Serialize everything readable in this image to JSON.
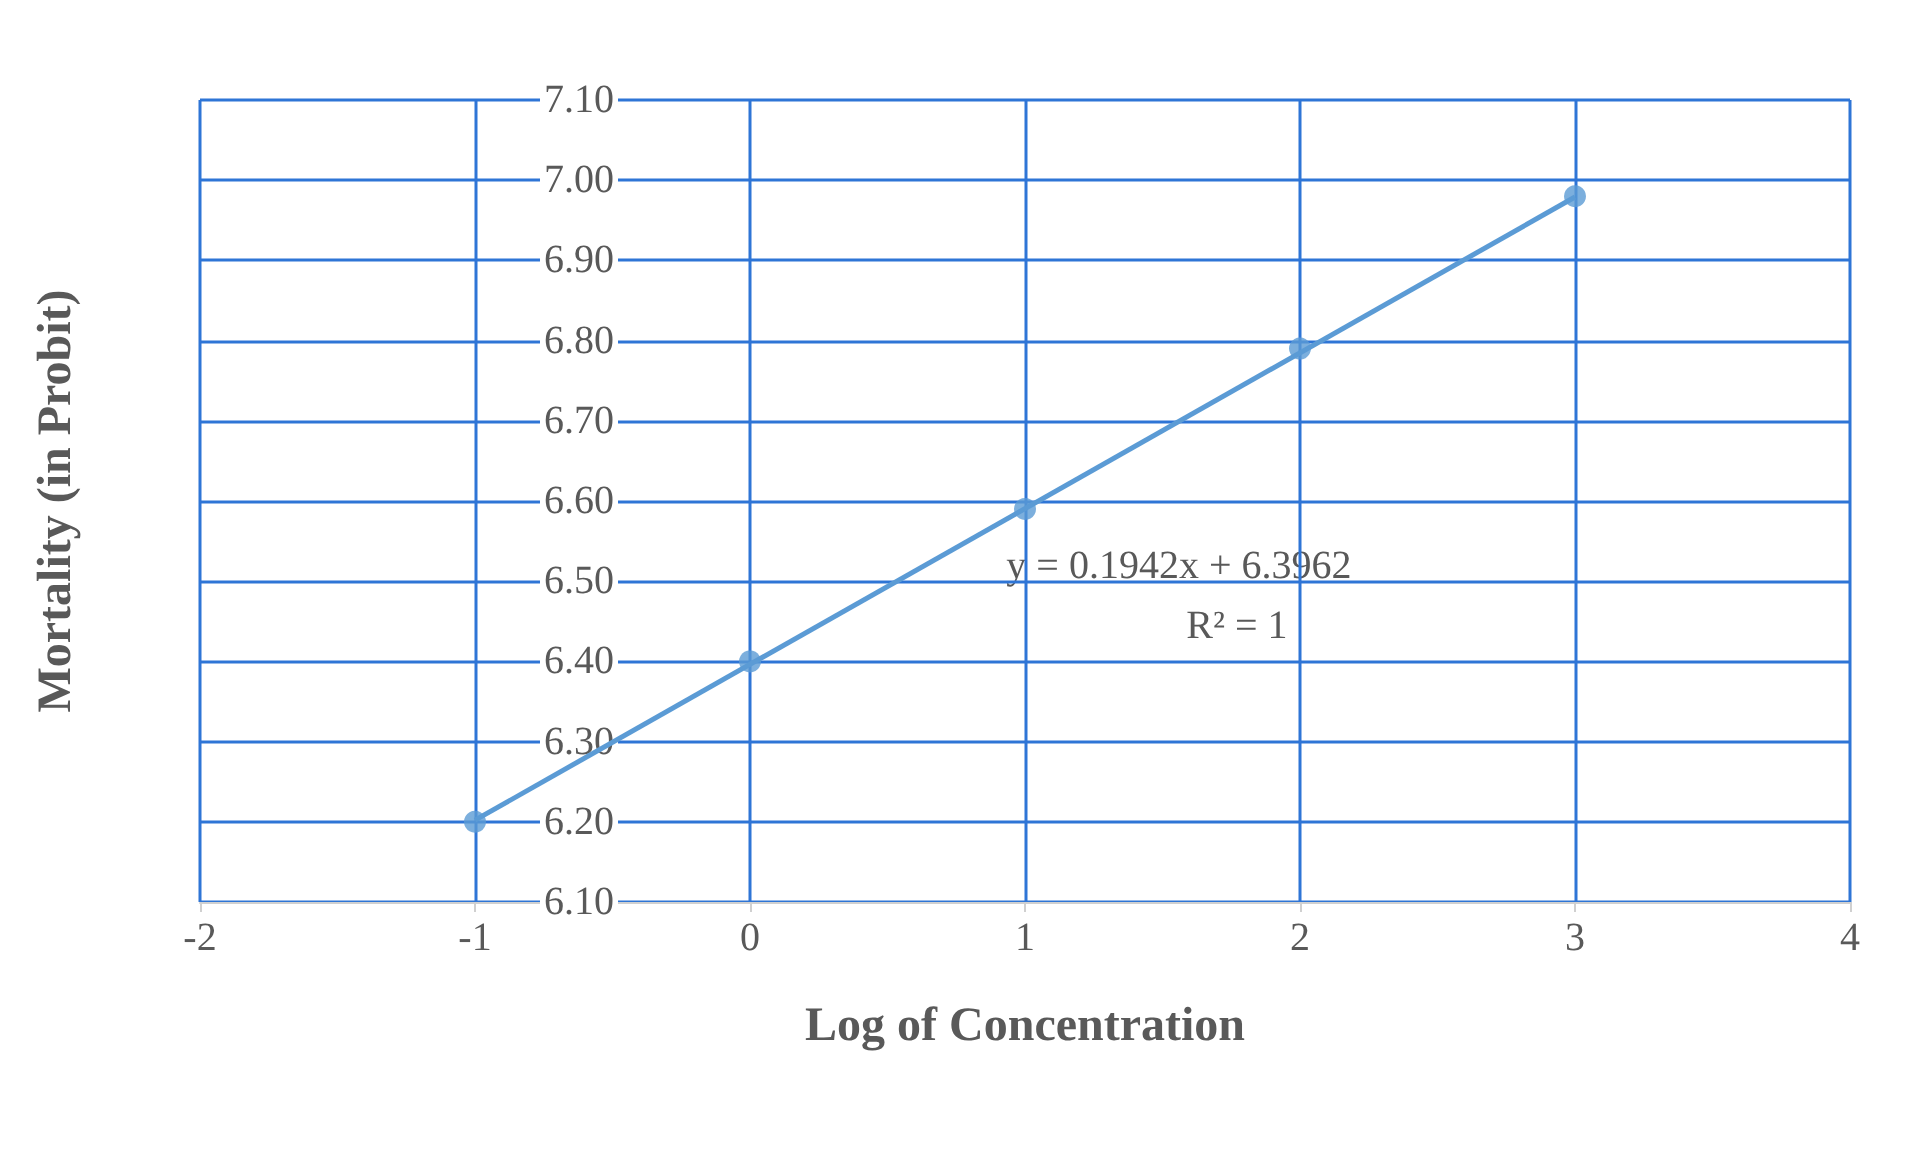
{
  "chart_data": {
    "type": "scatter",
    "xlabel": "Log of Concentration",
    "ylabel": "Mortality (in Probit)",
    "series": [
      {
        "color": "#5b9bd5",
        "x": [
          -1,
          0,
          1,
          2,
          3
        ],
        "values": [
          6.2,
          6.4,
          6.59,
          6.79,
          6.98
        ],
        "marker": "circle"
      },
      {
        "type": "line",
        "color": "#5b9bd5",
        "x": [
          -1,
          3
        ],
        "values": [
          6.202,
          6.979
        ],
        "marker": "none",
        "line_style": "solid"
      }
    ],
    "xlim": [
      -2,
      4
    ],
    "xticks": [
      -2,
      -1,
      0,
      1,
      2,
      3,
      4
    ],
    "ylim": [
      6.1,
      7.1
    ],
    "yticks": [
      {
        "value": 6.1,
        "label": "6.10"
      },
      {
        "value": 6.2,
        "label": "6.20"
      },
      {
        "value": 6.3,
        "label": "6.30"
      },
      {
        "value": 6.4,
        "label": "6.40"
      },
      {
        "value": 6.5,
        "label": "6.50"
      },
      {
        "value": 6.6,
        "label": "6.60"
      },
      {
        "value": 6.7,
        "label": "6.70"
      },
      {
        "value": 6.8,
        "label": "6.80"
      },
      {
        "value": 6.9,
        "label": "6.90"
      },
      {
        "value": 7.0,
        "label": "7.00"
      },
      {
        "value": 7.1,
        "label": "7.10"
      }
    ],
    "grid": true,
    "annotations": [
      "y = 0.1942x + 6.3962",
      "R² = 1"
    ]
  }
}
